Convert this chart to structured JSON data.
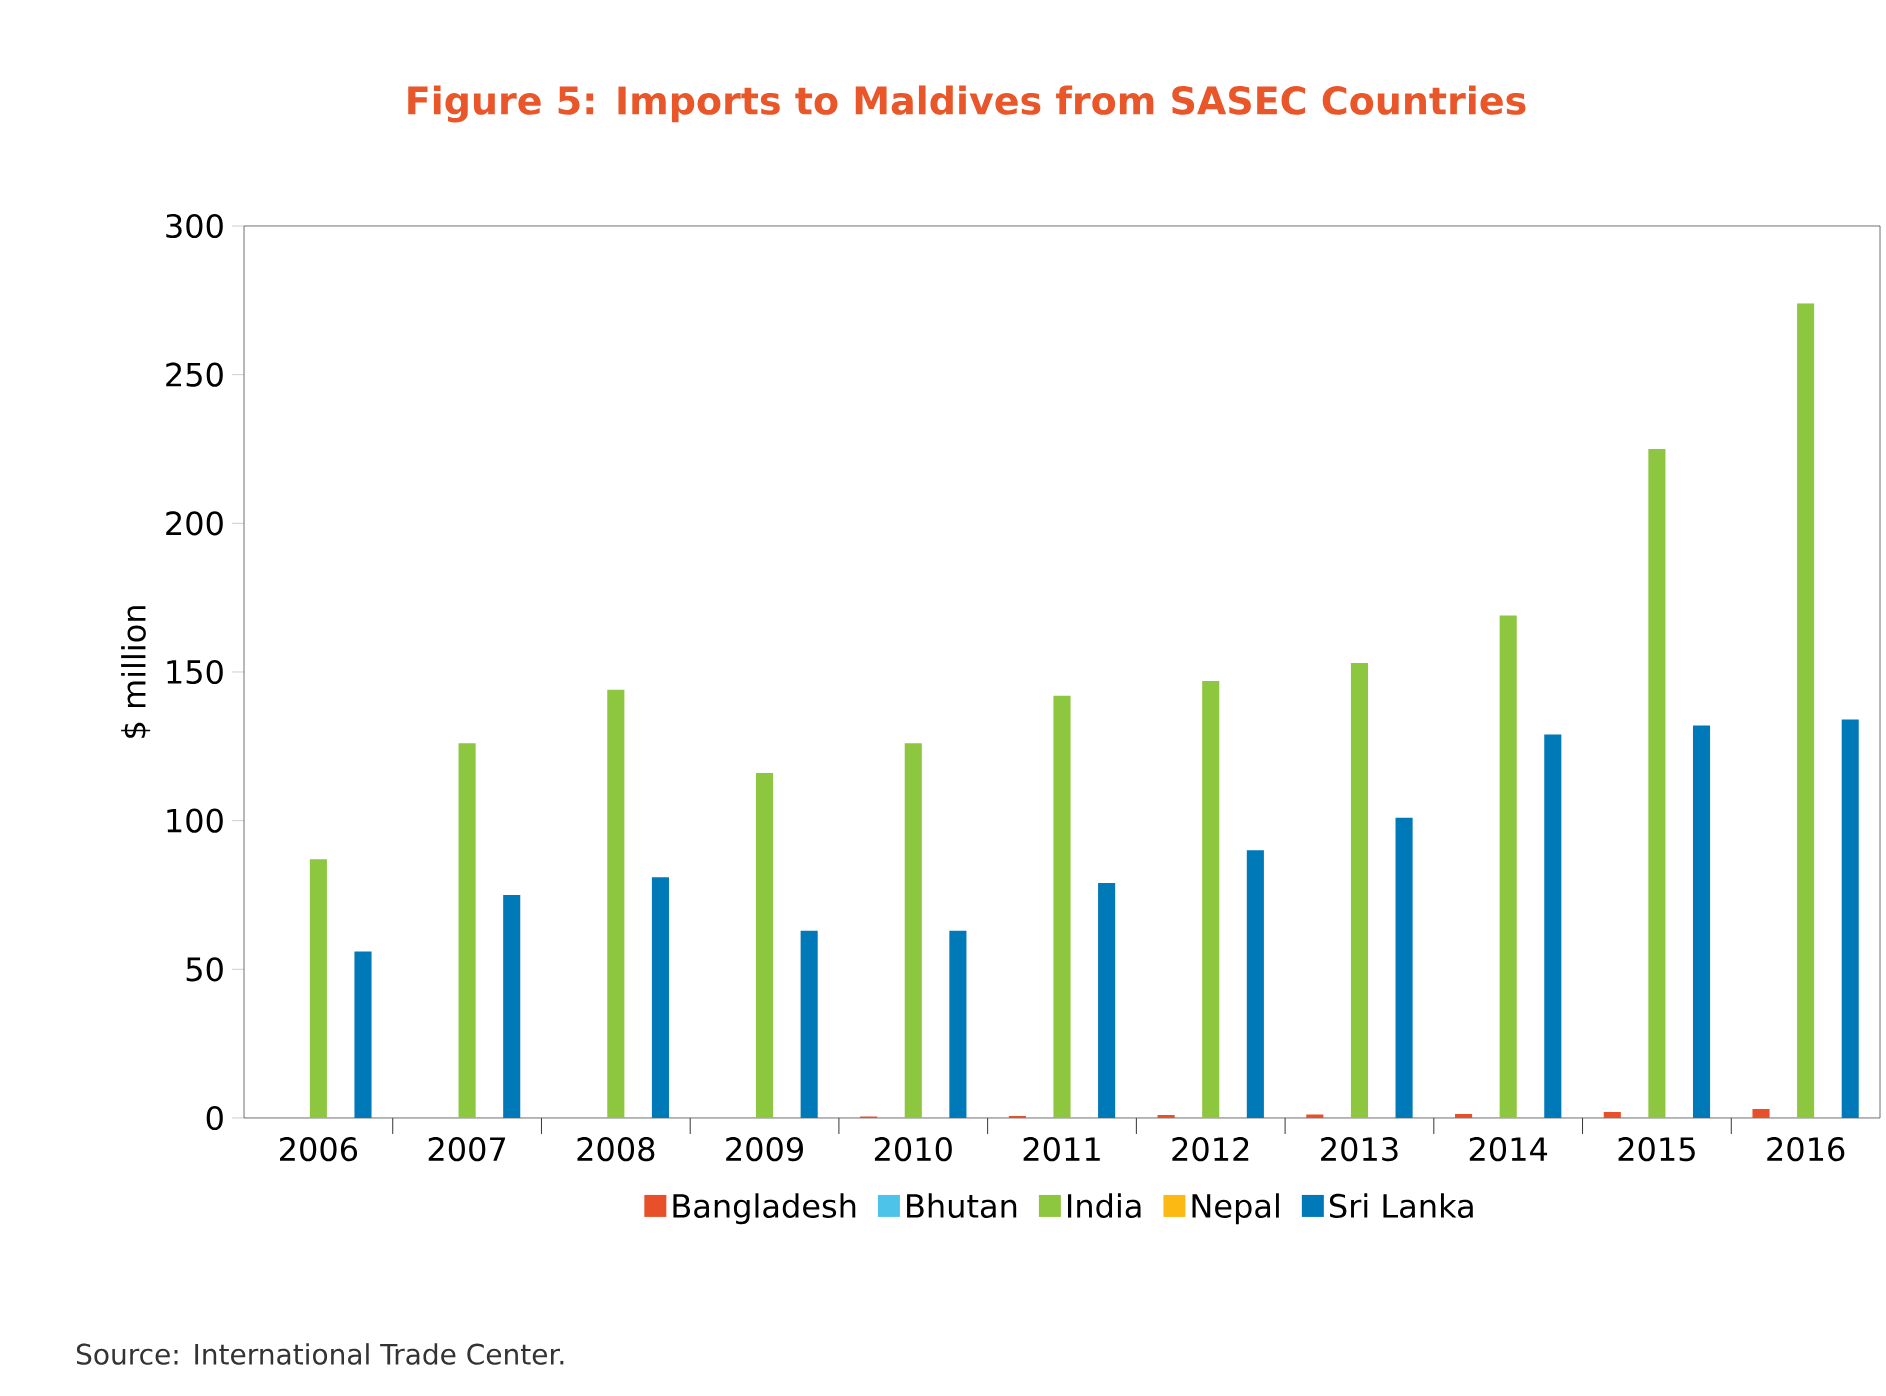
{
  "chart_data": {
    "type": "bar",
    "title": "Figure 5: Imports to Maldives from SASEC Countries",
    "ylabel": "$ million",
    "categories": [
      "2006",
      "2007",
      "2008",
      "2009",
      "2010",
      "2011",
      "2012",
      "2013",
      "2014",
      "2015",
      "2016"
    ],
    "series": [
      {
        "name": "Bangladesh",
        "color": "#e8502a",
        "values": [
          0,
          0,
          0,
          0,
          0.5,
          0.7,
          1,
          1.2,
          1.3,
          2,
          3
        ]
      },
      {
        "name": "Bhutan",
        "color": "#4dc3ea",
        "values": [
          0,
          0,
          0,
          0,
          0,
          0,
          0,
          0,
          0,
          0,
          0
        ]
      },
      {
        "name": "India",
        "color": "#8dc63f",
        "values": [
          87,
          126,
          144,
          116,
          126,
          142,
          147,
          153,
          169,
          225,
          274
        ]
      },
      {
        "name": "Nepal",
        "color": "#fdb913",
        "values": [
          0,
          0,
          0,
          0,
          0,
          0,
          0,
          0,
          0,
          0,
          0
        ]
      },
      {
        "name": "Sri Lanka",
        "color": "#0079b8",
        "values": [
          56,
          75,
          81,
          63,
          63,
          79,
          90,
          101,
          129,
          132,
          134
        ]
      }
    ],
    "ylim": [
      0,
      300
    ],
    "yticks": [
      0,
      50,
      100,
      150,
      200,
      250,
      300
    ],
    "grid": false,
    "legend": "bottom",
    "annotations": [
      "Source: International Trade Center."
    ]
  }
}
